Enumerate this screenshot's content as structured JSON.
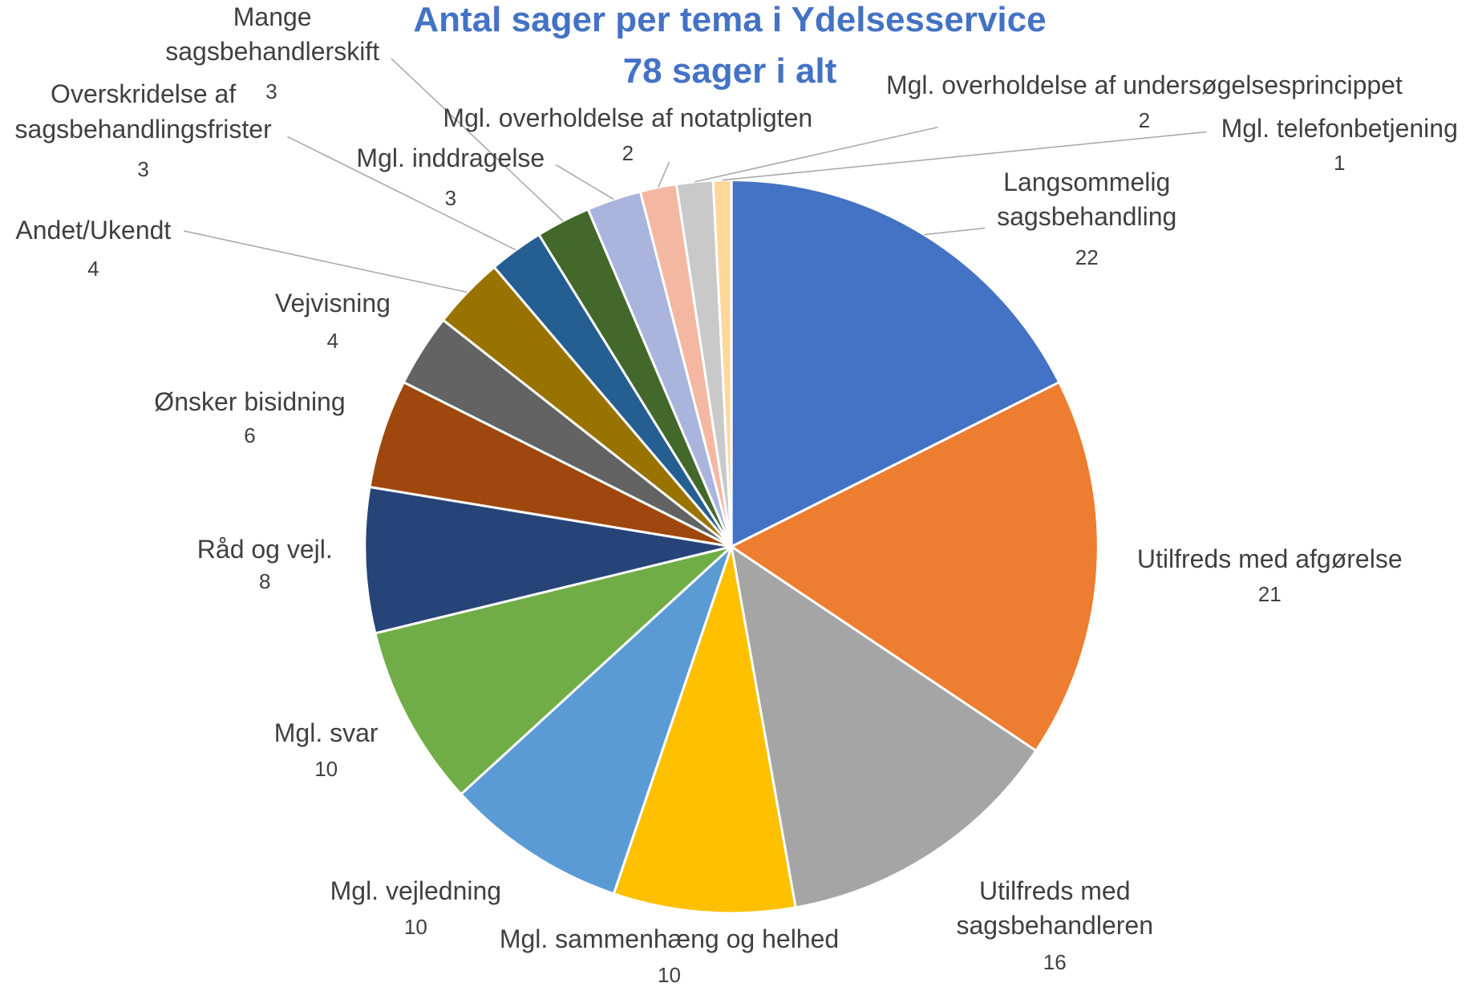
{
  "chart_data": {
    "type": "pie",
    "title": "Antal sager per tema i Ydelsesservice",
    "subtitle": "78 sager i alt",
    "categories": [
      "Langsommelig sagsbehandling",
      "Utilfreds med afgørelse",
      "Utilfreds med sagsbehandleren",
      "Mgl. sammenhæng og helhed",
      "Mgl. vejledning",
      "Mgl. svar",
      "Råd og vejl.",
      "Ønsker bisidning",
      "Vejvisning",
      "Andet/Ukendt",
      "Overskridelse af sagsbehandlingsfrister",
      "Mange sagsbehandlerskift",
      "Mgl. inddragelse",
      "Mgl. overholdelse af notatpligten",
      "Mgl. overholdelse af undersøgelsesprincippet",
      "Mgl. telefonbetjening"
    ],
    "values": [
      22,
      21,
      16,
      10,
      10,
      10,
      8,
      6,
      4,
      4,
      3,
      3,
      3,
      2,
      2,
      1
    ],
    "colors": [
      "#4472c4",
      "#ed7d31",
      "#a5a5a5",
      "#ffc000",
      "#5b9bd5",
      "#70ad47",
      "#264478",
      "#9e480e",
      "#636363",
      "#997300",
      "#255e91",
      "#43682b",
      "#a9b5dc",
      "#f4b8a2",
      "#c9c9c9",
      "#ffd79a"
    ]
  }
}
